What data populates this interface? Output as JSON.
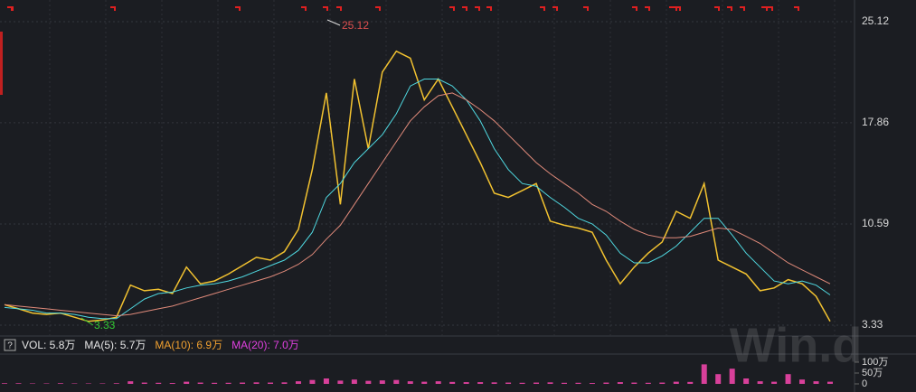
{
  "chart_data": [
    {
      "type": "line",
      "ylim": [
        2.68,
        26.35
      ],
      "yticks": [
        3.33,
        10.59,
        17.86,
        25.12
      ],
      "grid": true,
      "annotations": [
        "25.12",
        "3.33"
      ],
      "series": [
        {
          "color": "#f2c230",
          "values": [
            4.8,
            4.5,
            4.2,
            4.1,
            4.2,
            3.9,
            3.6,
            3.7,
            3.9,
            6.2,
            5.8,
            5.9,
            5.6,
            7.5,
            6.3,
            6.5,
            7.0,
            7.6,
            8.2,
            8.0,
            8.6,
            10.2,
            14.5,
            20.0,
            12.0,
            21.0,
            16.0,
            21.5,
            23.0,
            22.5,
            19.5,
            21.0,
            19.0,
            17.0,
            15.0,
            12.8,
            12.5,
            13.0,
            13.5,
            10.8,
            10.5,
            10.3,
            10.0,
            8.0,
            6.3,
            7.5,
            8.5,
            9.3,
            11.5,
            11.0,
            13.5,
            8.0,
            7.5,
            7.0,
            5.8,
            6.0,
            6.6,
            6.3,
            5.4,
            3.6
          ]
        },
        {
          "color": "#4fd8e0",
          "values": [
            4.6,
            4.5,
            4.4,
            4.2,
            4.2,
            4.1,
            3.9,
            3.8,
            3.8,
            4.5,
            5.2,
            5.6,
            5.7,
            6.0,
            6.2,
            6.3,
            6.5,
            6.8,
            7.2,
            7.6,
            8.0,
            8.7,
            10.0,
            12.5,
            13.5,
            15.0,
            16.0,
            17.0,
            18.5,
            20.5,
            21.0,
            21.0,
            20.5,
            19.5,
            18.0,
            16.0,
            14.5,
            13.5,
            13.3,
            12.5,
            11.8,
            11.0,
            10.6,
            9.8,
            8.5,
            7.8,
            7.8,
            8.3,
            9.0,
            10.0,
            11.0,
            11.0,
            9.8,
            8.5,
            7.5,
            6.5,
            6.3,
            6.5,
            6.2,
            5.5
          ]
        },
        {
          "color": "#e08a7a",
          "values": [
            4.8,
            4.7,
            4.6,
            4.5,
            4.4,
            4.3,
            4.2,
            4.1,
            4.0,
            4.1,
            4.3,
            4.5,
            4.7,
            5.0,
            5.3,
            5.6,
            5.9,
            6.2,
            6.5,
            6.8,
            7.2,
            7.7,
            8.4,
            9.5,
            10.5,
            12.0,
            13.5,
            15.0,
            16.5,
            18.0,
            19.0,
            19.8,
            20.0,
            19.5,
            18.8,
            18.0,
            17.0,
            16.0,
            15.0,
            14.2,
            13.5,
            12.8,
            12.0,
            11.5,
            10.8,
            10.2,
            9.8,
            9.6,
            9.6,
            9.7,
            10.0,
            10.3,
            10.2,
            9.7,
            9.2,
            8.5,
            7.8,
            7.3,
            6.8,
            6.3
          ]
        }
      ]
    },
    {
      "type": "bar",
      "legend": [
        {
          "text": "VOL: 5.8万",
          "color": "#e6e6e6"
        },
        {
          "text": "MA(5): 5.7万",
          "color": "#e6e6e6"
        },
        {
          "text": "MA(10): 6.9万",
          "color": "#f0a030"
        },
        {
          "text": "MA(20): 7.0万",
          "color": "#e040e0"
        }
      ],
      "ylim": [
        0,
        125
      ],
      "yticks": [
        0,
        {
          "value": 50,
          "label": "50万"
        },
        {
          "value": 100,
          "label": "100万"
        }
      ],
      "color": "#d8409a",
      "values": [
        3,
        3,
        2,
        2,
        3,
        2,
        2,
        2,
        3,
        12,
        6,
        5,
        4,
        10,
        6,
        5,
        5,
        6,
        7,
        6,
        7,
        12,
        18,
        25,
        15,
        20,
        14,
        16,
        18,
        12,
        10,
        12,
        9,
        8,
        8,
        7,
        6,
        5,
        6,
        7,
        5,
        5,
        4,
        6,
        8,
        6,
        5,
        6,
        10,
        9,
        90,
        45,
        70,
        25,
        12,
        10,
        45,
        20,
        12,
        10
      ]
    }
  ],
  "watermark": "Win.d"
}
